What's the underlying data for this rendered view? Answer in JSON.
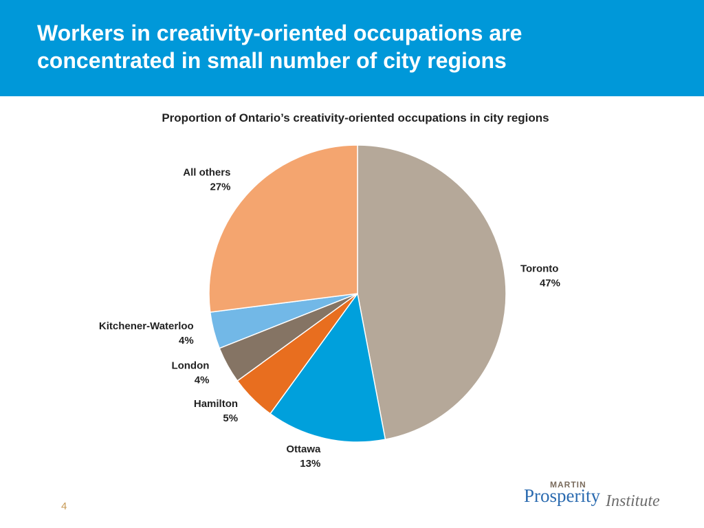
{
  "header": {
    "title": "Workers in creativity-oriented occupations are concentrated in small number of city regions"
  },
  "chart_data": {
    "type": "pie",
    "title": "Proportion of Ontario’s creativity-oriented occupations in city regions",
    "categories": [
      "Toronto",
      "Ottawa",
      "Hamilton",
      "London",
      "Kitchener-Waterloo",
      "All others"
    ],
    "values": [
      47,
      13,
      5,
      4,
      4,
      27
    ],
    "value_labels": [
      "47%",
      "13%",
      "5%",
      "4%",
      "4%",
      "27%"
    ],
    "colors": [
      "#b5a899",
      "#00a0dc",
      "#e86e1f",
      "#857464",
      "#72b8e7",
      "#f4a56f"
    ]
  },
  "page_number": "4",
  "logo": {
    "top": "MARTIN",
    "name": "Prosperity",
    "suffix": "Institute"
  }
}
